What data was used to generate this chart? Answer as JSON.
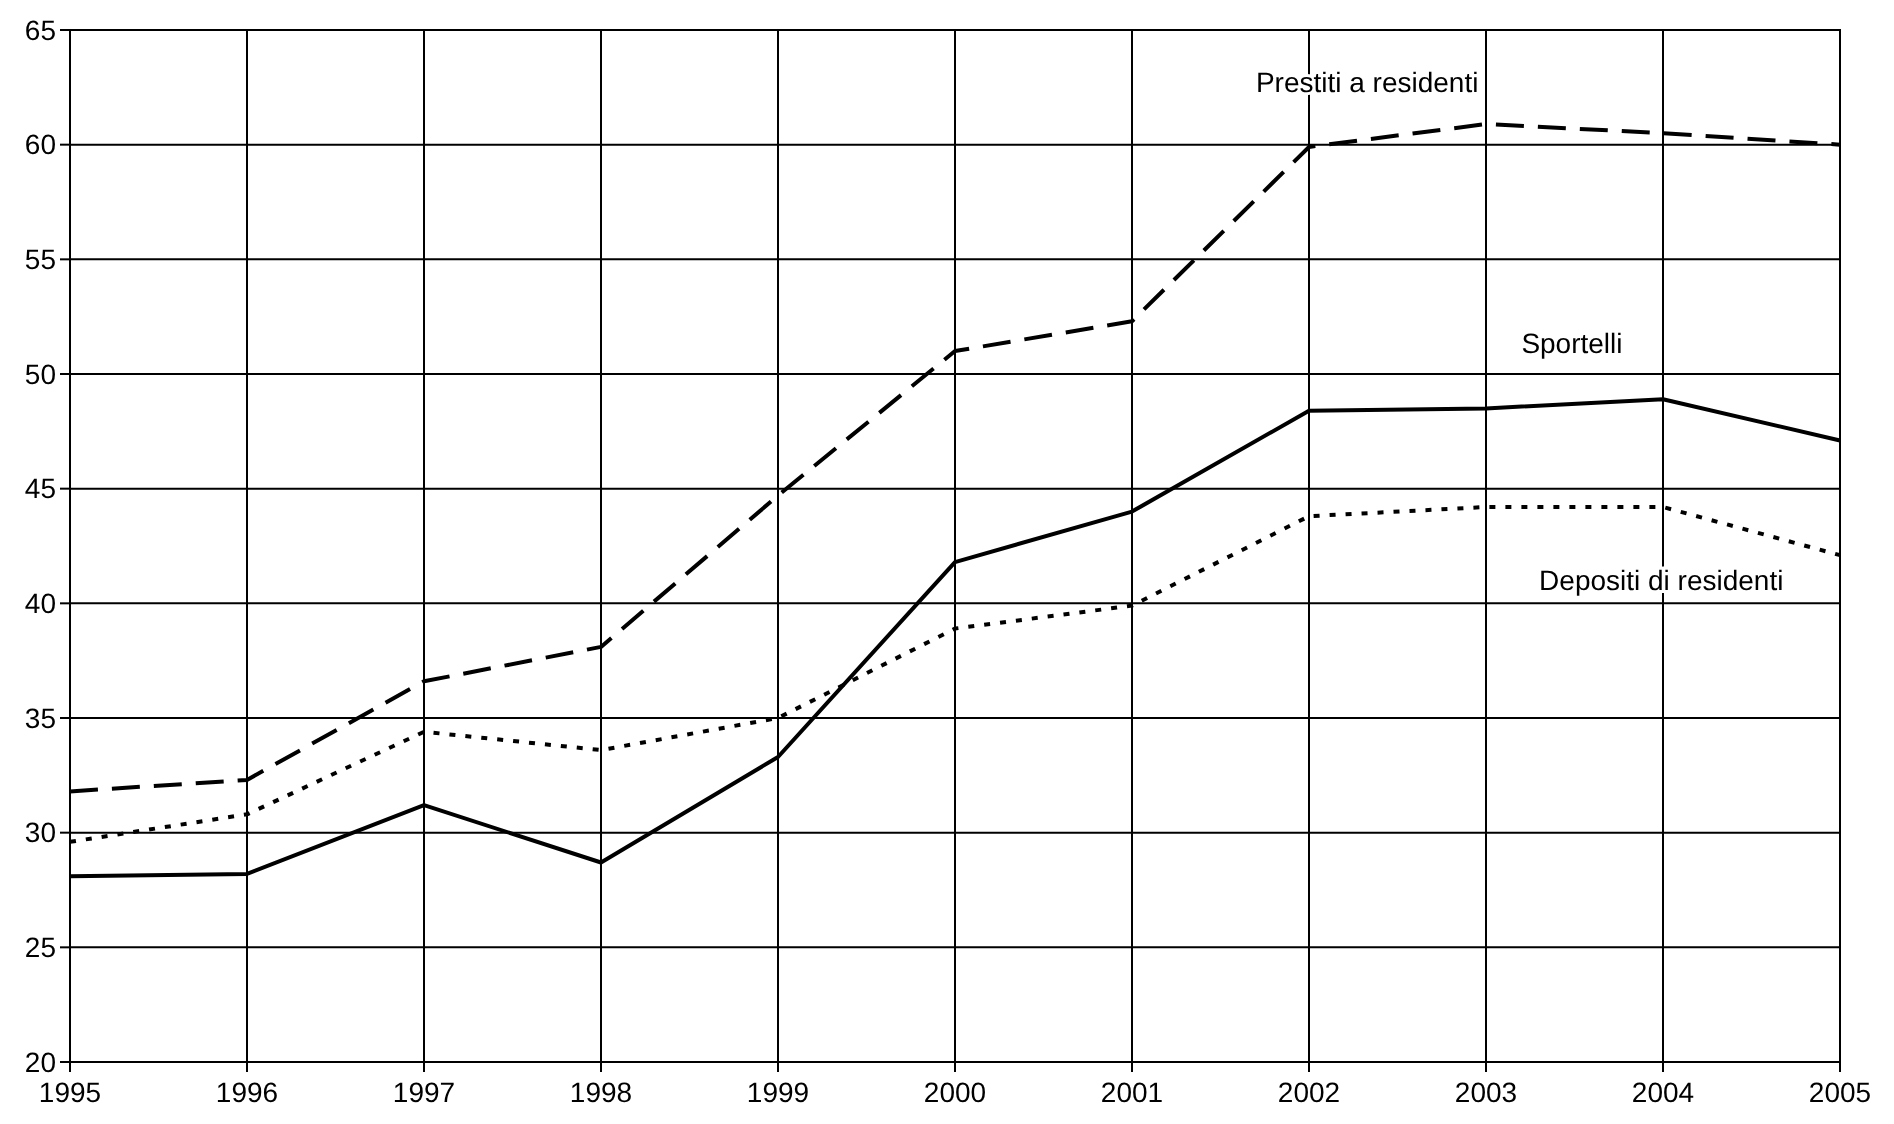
{
  "chart_data": {
    "type": "line",
    "x": [
      1995,
      1996,
      1997,
      1998,
      1999,
      2000,
      2001,
      2002,
      2003,
      2004,
      2005
    ],
    "xlim": [
      1995,
      2005
    ],
    "xticks": [
      1995,
      1996,
      1997,
      1998,
      1999,
      2000,
      2001,
      2002,
      2003,
      2004,
      2005
    ],
    "ylim": [
      20,
      65
    ],
    "yticks": [
      20,
      25,
      30,
      35,
      40,
      45,
      50,
      55,
      60,
      65
    ],
    "grid": true,
    "series": [
      {
        "name": "Prestiti a residenti",
        "color": "#000000",
        "line_style": "dashed",
        "values": [
          31.8,
          32.3,
          36.6,
          38.1,
          44.7,
          51.0,
          52.3,
          59.9,
          60.9,
          60.5,
          60.0
        ]
      },
      {
        "name": "Sportelli",
        "color": "#000000",
        "line_style": "solid",
        "values": [
          28.1,
          28.2,
          31.2,
          28.7,
          33.3,
          41.8,
          44.0,
          48.4,
          48.5,
          48.9,
          47.1
        ]
      },
      {
        "name": "Depositi di residenti",
        "color": "#000000",
        "line_style": "dotted",
        "values": [
          29.6,
          30.8,
          34.4,
          33.6,
          35.0,
          38.9,
          39.9,
          43.8,
          44.2,
          44.2,
          42.1
        ]
      }
    ]
  }
}
